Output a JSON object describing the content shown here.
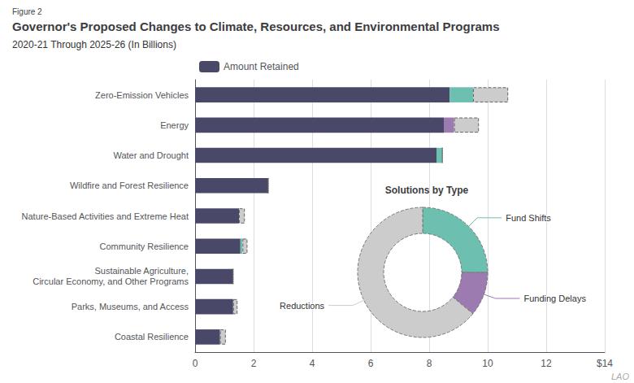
{
  "chart_data": [
    {
      "type": "bar",
      "orientation": "horizontal",
      "stacked": true,
      "title": "Governor's Proposed Changes to Climate, Resources, and Environmental Programs",
      "subtitle": "2020-21 Through 2025-26 (In Billions)",
      "annotations": [
        "Figure 2",
        "LAO"
      ],
      "categories": [
        "Zero-Emission Vehicles",
        "Energy",
        "Water and Drought",
        "Wildfire and Forest Resilience",
        "Nature-Based Activities and Extreme Heat",
        "Community Resilience",
        "Sustainable Agriculture,\nCircular Economy, and Other Programs",
        "Parks, Museums, and Access",
        "Coastal Resilience"
      ],
      "series": [
        {
          "name": "Amount Retained",
          "color": "#4a4869",
          "values": [
            8.7,
            8.5,
            8.25,
            2.5,
            1.5,
            1.55,
            1.3,
            1.3,
            0.85
          ]
        },
        {
          "color": "#6dbfb0",
          "values": [
            0.8,
            0.0,
            0.2,
            0.0,
            0.0,
            0.07,
            0.0,
            0.0,
            0.0
          ]
        },
        {
          "color": "#9b7bb0",
          "values": [
            0.0,
            0.35,
            0.0,
            0.0,
            0.0,
            0.0,
            0.0,
            0.0,
            0.0
          ]
        },
        {
          "color": "#cccccc",
          "line_style": "dashed",
          "values": [
            1.2,
            0.85,
            0.0,
            0.0,
            0.2,
            0.17,
            0.0,
            0.15,
            0.2
          ]
        }
      ],
      "xlim": [
        0,
        14
      ],
      "xticks": [
        0,
        2,
        4,
        6,
        8,
        10,
        12,
        {
          "value": 14,
          "label": "$14"
        }
      ],
      "grid": true,
      "legend": "top"
    },
    {
      "type": "pie",
      "title": "Solutions by Type",
      "categories": [
        "Fund Shifts",
        "Funding Delays",
        "Reductions"
      ],
      "values": [
        0.8,
        0.35,
        2.05
      ],
      "colors": [
        "#6dbfb0",
        "#9b7bb0",
        "#cccccc"
      ],
      "line_style": "dashed"
    }
  ]
}
